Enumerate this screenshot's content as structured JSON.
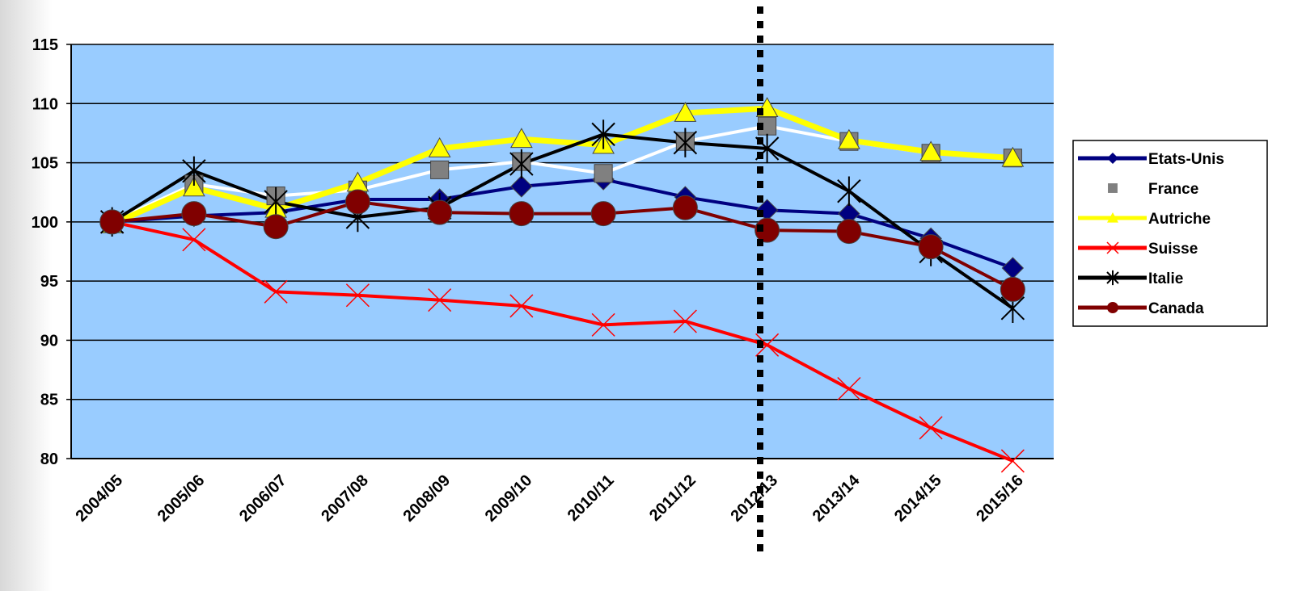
{
  "chart_data": {
    "type": "line",
    "categories": [
      "2004/05",
      "2005/06",
      "2006/07",
      "2007/08",
      "2008/09",
      "2009/10",
      "2010/11",
      "2011/12",
      "2012/13",
      "2013/14",
      "2014/15",
      "2015/16"
    ],
    "series": [
      {
        "name": "Etats-Unis",
        "color": "#000080",
        "marker": "diamond",
        "marker_color": "#000080",
        "values": [
          100,
          100.5,
          100.8,
          101.9,
          101.9,
          103,
          103.6,
          102.1,
          101.0,
          100.7,
          98.6,
          96.1
        ]
      },
      {
        "name": "France",
        "color": "#ffffff",
        "marker": "square",
        "marker_color": "#808080",
        "values": [
          100,
          103.2,
          102.2,
          102.7,
          104.4,
          105.1,
          104.1,
          106.8,
          108.1,
          106.8,
          105.8,
          105.4
        ]
      },
      {
        "name": "Autriche",
        "color": "#ffff00",
        "marker": "triangle",
        "marker_color": "#ffff00",
        "values": [
          99.8,
          102.9,
          101.1,
          103.3,
          106.2,
          107.0,
          106.5,
          109.2,
          109.6,
          106.9,
          105.9,
          105.4
        ]
      },
      {
        "name": "Suisse",
        "color": "#ff0000",
        "marker": "x",
        "marker_color": "#ff0000",
        "values": [
          100,
          98.5,
          94.1,
          93.8,
          93.4,
          92.9,
          91.3,
          91.6,
          89.6,
          85.9,
          82.6,
          79.8
        ]
      },
      {
        "name": "Italie",
        "color": "#000000",
        "marker": "star",
        "marker_color": "#000000",
        "values": [
          100,
          104.3,
          101.7,
          100.4,
          101.2,
          104.9,
          107.4,
          106.7,
          106.2,
          102.6,
          97.5,
          92.7
        ]
      },
      {
        "name": "Canada",
        "color": "#800000",
        "marker": "circle",
        "marker_color": "#800000",
        "values": [
          100,
          100.7,
          99.6,
          101.7,
          100.8,
          100.7,
          100.7,
          101.2,
          99.3,
          99.2,
          97.9,
          94.3
        ]
      }
    ],
    "ylim": [
      80,
      115
    ],
    "yticks": [
      80,
      85,
      90,
      95,
      100,
      105,
      110,
      115
    ],
    "grid": true,
    "legend": "right"
  }
}
